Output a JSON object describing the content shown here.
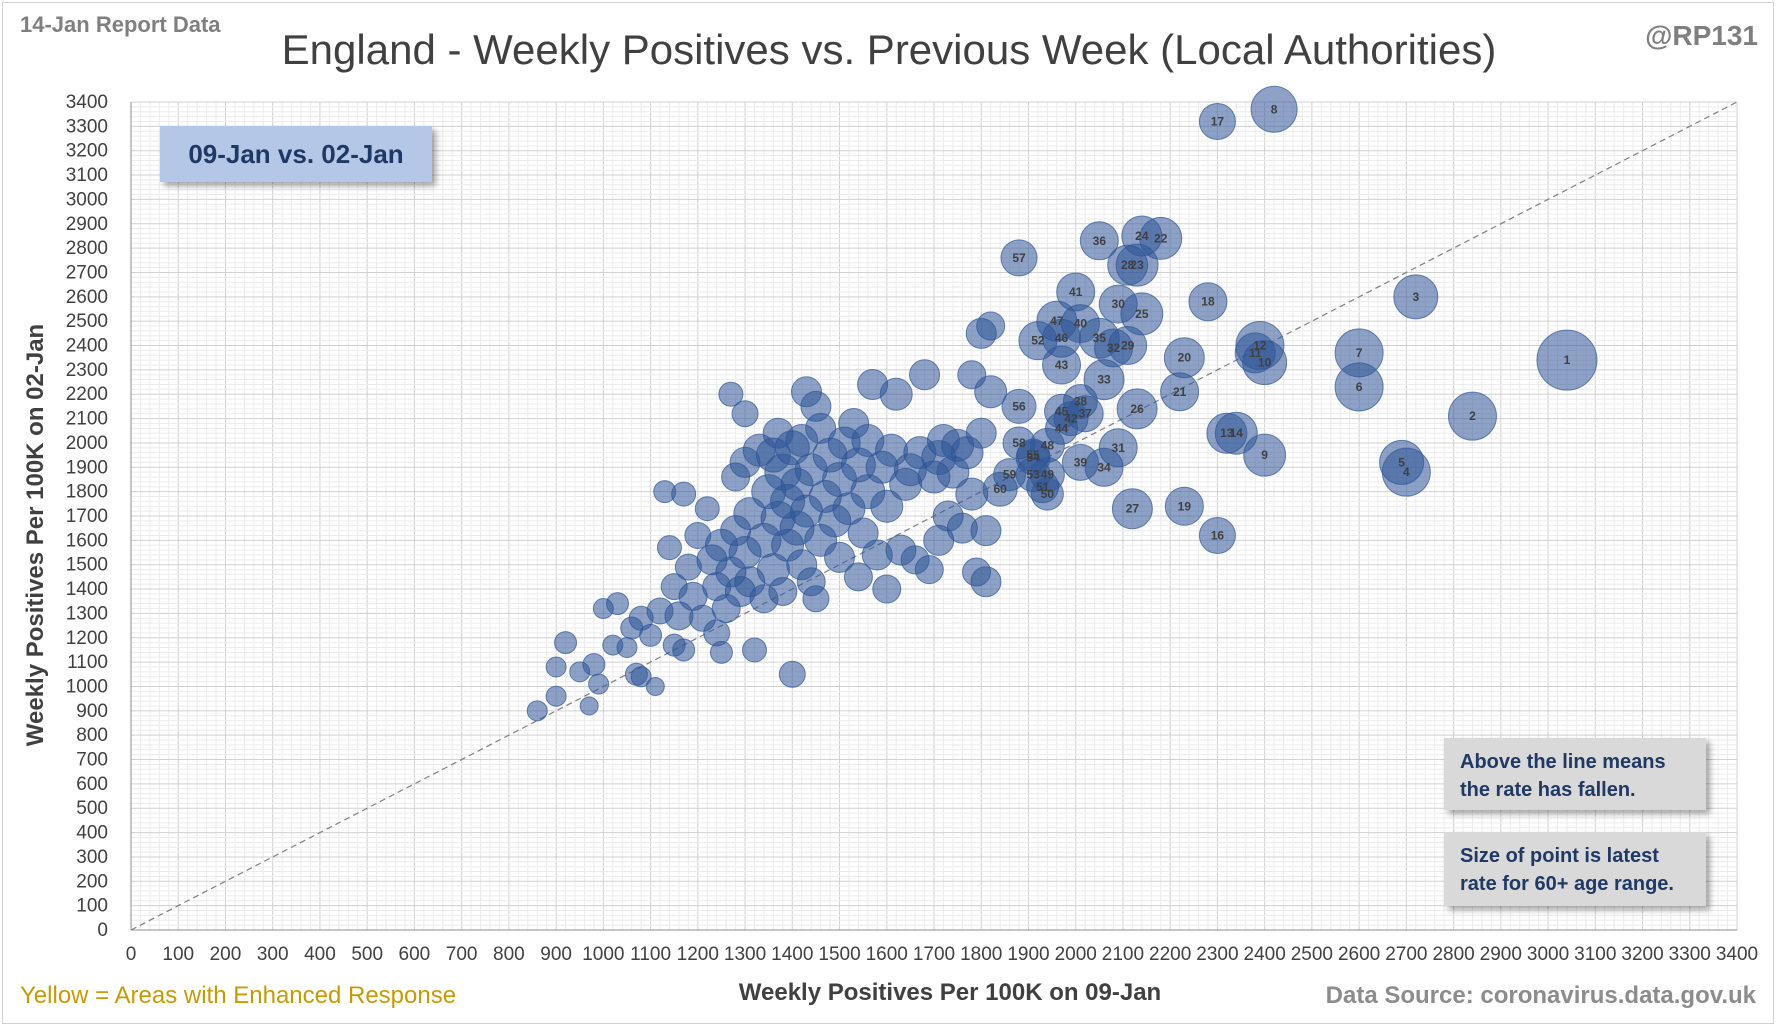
{
  "header": {
    "report_date": "14-Jan Report Data",
    "handle": "@RP131"
  },
  "footer": {
    "note": "Yellow = Areas with Enhanced  Response",
    "source": "Data Source: coronavirus.data.gov.uk"
  },
  "badge": "09-Jan vs. 02-Jan",
  "notes": {
    "line_meaning": "Above the line means the rate has fallen.",
    "size_meaning": "Size of point is latest rate for 60+ age range."
  },
  "colors": {
    "bubble": "#2f5597",
    "badge_bg": "#b4c7e7",
    "note_bg": "#d9d9d9",
    "enhanced": "#c99a00"
  },
  "chart_data": {
    "type": "scatter",
    "title": "England - Weekly Positives vs. Previous Week (Local Authorities)",
    "xlabel": "Weekly Positives Per 100K on 09-Jan",
    "ylabel": "Weekly Positives Per 100K on 02-Jan",
    "xlim": [
      0,
      3400
    ],
    "ylim": [
      0,
      3400
    ],
    "x_ticks": [
      "0",
      "100",
      "200",
      "300",
      "400",
      "500",
      "600",
      "700",
      "800",
      "900",
      "1000",
      "1100",
      "1200",
      "1300",
      "1400",
      "1500",
      "1600",
      "1700",
      "1800",
      "1900",
      "2000",
      "2100",
      "2200",
      "2300",
      "2400",
      "2500",
      "2600",
      "2700",
      "2800",
      "2900",
      "3000",
      "3100",
      "3200",
      "3300",
      "3400"
    ],
    "y_ticks": [
      "0",
      "100",
      "200",
      "300",
      "400",
      "500",
      "600",
      "700",
      "800",
      "900",
      "1000",
      "1100",
      "1200",
      "1300",
      "1400",
      "1500",
      "1600",
      "1700",
      "1800",
      "1900",
      "2000",
      "2100",
      "2200",
      "2300",
      "2400",
      "2500",
      "2600",
      "2700",
      "2800",
      "2900",
      "3000",
      "3100",
      "3200",
      "3300",
      "3400"
    ],
    "grid": true,
    "reference_line": "y = x",
    "labeled_points": [
      {
        "label": "1",
        "x": 3040,
        "y": 2340,
        "size": 3
      },
      {
        "label": "2",
        "x": 2840,
        "y": 2110,
        "size": 2.4
      },
      {
        "label": "3",
        "x": 2720,
        "y": 2600,
        "size": 2.2
      },
      {
        "label": "4",
        "x": 2700,
        "y": 1880,
        "size": 2.4
      },
      {
        "label": "5",
        "x": 2690,
        "y": 1920,
        "size": 2.2
      },
      {
        "label": "6",
        "x": 2600,
        "y": 2230,
        "size": 2.4
      },
      {
        "label": "7",
        "x": 2600,
        "y": 2370,
        "size": 2.4
      },
      {
        "label": "8",
        "x": 2420,
        "y": 3370,
        "size": 2.3
      },
      {
        "label": "9",
        "x": 2400,
        "y": 1950,
        "size": 2.1
      },
      {
        "label": "10",
        "x": 2400,
        "y": 2330,
        "size": 2.2
      },
      {
        "label": "11",
        "x": 2380,
        "y": 2370,
        "size": 2.0
      },
      {
        "label": "12",
        "x": 2390,
        "y": 2400,
        "size": 2.4
      },
      {
        "label": "13",
        "x": 2320,
        "y": 2040,
        "size": 2.0
      },
      {
        "label": "14",
        "x": 2340,
        "y": 2040,
        "size": 2.1
      },
      {
        "label": "16",
        "x": 2300,
        "y": 1620,
        "size": 1.8
      },
      {
        "label": "17",
        "x": 2300,
        "y": 3320,
        "size": 1.8
      },
      {
        "label": "18",
        "x": 2280,
        "y": 2580,
        "size": 1.9
      },
      {
        "label": "19",
        "x": 2230,
        "y": 1740,
        "size": 1.9
      },
      {
        "label": "20",
        "x": 2230,
        "y": 2350,
        "size": 2.0
      },
      {
        "label": "21",
        "x": 2220,
        "y": 2210,
        "size": 1.9
      },
      {
        "label": "22",
        "x": 2180,
        "y": 2840,
        "size": 2.1
      },
      {
        "label": "23",
        "x": 2130,
        "y": 2730,
        "size": 2.1
      },
      {
        "label": "24",
        "x": 2140,
        "y": 2850,
        "size": 2.0
      },
      {
        "label": "25",
        "x": 2140,
        "y": 2530,
        "size": 2.1
      },
      {
        "label": "26",
        "x": 2130,
        "y": 2140,
        "size": 2.0
      },
      {
        "label": "27",
        "x": 2120,
        "y": 1730,
        "size": 2.0
      },
      {
        "label": "28",
        "x": 2110,
        "y": 2730,
        "size": 2.0
      },
      {
        "label": "29",
        "x": 2110,
        "y": 2400,
        "size": 1.9
      },
      {
        "label": "30",
        "x": 2090,
        "y": 2570,
        "size": 1.9
      },
      {
        "label": "31",
        "x": 2090,
        "y": 1980,
        "size": 1.9
      },
      {
        "label": "32",
        "x": 2080,
        "y": 2390,
        "size": 1.9
      },
      {
        "label": "33",
        "x": 2060,
        "y": 2260,
        "size": 2.0
      },
      {
        "label": "34",
        "x": 2060,
        "y": 1900,
        "size": 1.9
      },
      {
        "label": "35",
        "x": 2050,
        "y": 2430,
        "size": 2.0
      },
      {
        "label": "36",
        "x": 2050,
        "y": 2830,
        "size": 1.9
      },
      {
        "label": "37",
        "x": 2020,
        "y": 2120,
        "size": 1.8
      },
      {
        "label": "38",
        "x": 2010,
        "y": 2170,
        "size": 1.7
      },
      {
        "label": "39",
        "x": 2010,
        "y": 1920,
        "size": 1.8
      },
      {
        "label": "40",
        "x": 2010,
        "y": 2490,
        "size": 1.9
      },
      {
        "label": "41",
        "x": 2000,
        "y": 2620,
        "size": 1.9
      },
      {
        "label": "42",
        "x": 1990,
        "y": 2100,
        "size": 1.7
      },
      {
        "label": "43",
        "x": 1970,
        "y": 2320,
        "size": 1.9
      },
      {
        "label": "44",
        "x": 1970,
        "y": 2060,
        "size": 1.6
      },
      {
        "label": "45",
        "x": 1970,
        "y": 2130,
        "size": 1.7
      },
      {
        "label": "46",
        "x": 1970,
        "y": 2430,
        "size": 1.9
      },
      {
        "label": "47",
        "x": 1960,
        "y": 2500,
        "size": 2.0
      },
      {
        "label": "48",
        "x": 1940,
        "y": 1990,
        "size": 1.7
      },
      {
        "label": "49",
        "x": 1940,
        "y": 1870,
        "size": 1.7
      },
      {
        "label": "50",
        "x": 1940,
        "y": 1790,
        "size": 1.6
      },
      {
        "label": "51",
        "x": 1930,
        "y": 1820,
        "size": 1.6
      },
      {
        "label": "52",
        "x": 1920,
        "y": 2420,
        "size": 1.9
      },
      {
        "label": "53",
        "x": 1910,
        "y": 1870,
        "size": 1.7
      },
      {
        "label": "54",
        "x": 1910,
        "y": 1940,
        "size": 1.7
      },
      {
        "label": "55",
        "x": 1910,
        "y": 1950,
        "size": 1.6
      },
      {
        "label": "56",
        "x": 1880,
        "y": 2150,
        "size": 1.7
      },
      {
        "label": "57",
        "x": 1880,
        "y": 2760,
        "size": 1.8
      },
      {
        "label": "58",
        "x": 1880,
        "y": 2000,
        "size": 1.6
      },
      {
        "label": "59",
        "x": 1860,
        "y": 1870,
        "size": 1.6
      },
      {
        "label": "60",
        "x": 1840,
        "y": 1810,
        "size": 1.7
      }
    ],
    "unlabeled_points": [
      [
        860,
        900,
        1
      ],
      [
        900,
        960,
        1
      ],
      [
        900,
        1080,
        1
      ],
      [
        920,
        1180,
        1.1
      ],
      [
        950,
        1060,
        1
      ],
      [
        970,
        920,
        0.9
      ],
      [
        980,
        1090,
        1.1
      ],
      [
        990,
        1010,
        1
      ],
      [
        1000,
        1320,
        1
      ],
      [
        1020,
        1170,
        1
      ],
      [
        1030,
        1340,
        1.1
      ],
      [
        1050,
        1160,
        1
      ],
      [
        1060,
        1240,
        1.1
      ],
      [
        1070,
        1050,
        1.1
      ],
      [
        1080,
        1280,
        1.2
      ],
      [
        1080,
        1040,
        1
      ],
      [
        1100,
        1210,
        1.1
      ],
      [
        1110,
        1000,
        0.9
      ],
      [
        1120,
        1310,
        1.3
      ],
      [
        1130,
        1800,
        1.1
      ],
      [
        1140,
        1570,
        1.2
      ],
      [
        1150,
        1170,
        1.1
      ],
      [
        1150,
        1410,
        1.3
      ],
      [
        1160,
        1290,
        1.4
      ],
      [
        1170,
        1150,
        1.1
      ],
      [
        1170,
        1790,
        1.2
      ],
      [
        1180,
        1490,
        1.3
      ],
      [
        1190,
        1370,
        1.4
      ],
      [
        1200,
        1620,
        1.3
      ],
      [
        1210,
        1280,
        1.3
      ],
      [
        1220,
        1730,
        1.2
      ],
      [
        1230,
        1520,
        1.5
      ],
      [
        1240,
        1410,
        1.4
      ],
      [
        1240,
        1220,
        1.3
      ],
      [
        1250,
        1580,
        1.6
      ],
      [
        1250,
        1140,
        1.1
      ],
      [
        1260,
        1320,
        1.4
      ],
      [
        1270,
        1470,
        1.5
      ],
      [
        1270,
        2200,
        1.2
      ],
      [
        1280,
        1640,
        1.5
      ],
      [
        1280,
        1860,
        1.4
      ],
      [
        1290,
        1390,
        1.5
      ],
      [
        1300,
        1550,
        1.6
      ],
      [
        1300,
        1920,
        1.5
      ],
      [
        1300,
        2120,
        1.3
      ],
      [
        1310,
        1710,
        1.6
      ],
      [
        1310,
        1430,
        1.5
      ],
      [
        1320,
        1150,
        1.2
      ],
      [
        1330,
        1970,
        1.6
      ],
      [
        1340,
        1600,
        1.7
      ],
      [
        1340,
        1360,
        1.4
      ],
      [
        1350,
        1800,
        1.7
      ],
      [
        1360,
        1950,
        1.7
      ],
      [
        1360,
        1480,
        1.6
      ],
      [
        1370,
        2040,
        1.5
      ],
      [
        1370,
        1690,
        1.7
      ],
      [
        1380,
        1880,
        1.8
      ],
      [
        1380,
        1390,
        1.4
      ],
      [
        1390,
        1580,
        1.6
      ],
      [
        1390,
        1760,
        1.7
      ],
      [
        1400,
        1050,
        1.3
      ],
      [
        1400,
        1980,
        1.7
      ],
      [
        1410,
        1650,
        1.7
      ],
      [
        1410,
        1830,
        1.6
      ],
      [
        1420,
        1500,
        1.5
      ],
      [
        1420,
        2010,
        1.6
      ],
      [
        1430,
        1720,
        1.6
      ],
      [
        1430,
        2210,
        1.5
      ],
      [
        1440,
        1430,
        1.4
      ],
      [
        1440,
        1890,
        1.6
      ],
      [
        1450,
        1360,
        1.3
      ],
      [
        1450,
        2150,
        1.5
      ],
      [
        1460,
        1600,
        1.6
      ],
      [
        1460,
        2060,
        1.5
      ],
      [
        1470,
        1780,
        1.6
      ],
      [
        1480,
        1950,
        1.7
      ],
      [
        1490,
        1680,
        1.6
      ],
      [
        1500,
        1530,
        1.5
      ],
      [
        1500,
        1850,
        1.7
      ],
      [
        1510,
        2000,
        1.6
      ],
      [
        1520,
        1730,
        1.6
      ],
      [
        1530,
        2080,
        1.5
      ],
      [
        1540,
        1450,
        1.4
      ],
      [
        1540,
        1910,
        1.7
      ],
      [
        1550,
        1630,
        1.5
      ],
      [
        1560,
        1800,
        1.7
      ],
      [
        1560,
        2010,
        1.6
      ],
      [
        1570,
        2240,
        1.5
      ],
      [
        1580,
        1540,
        1.5
      ],
      [
        1590,
        1900,
        1.6
      ],
      [
        1600,
        1400,
        1.4
      ],
      [
        1600,
        1740,
        1.6
      ],
      [
        1610,
        1970,
        1.6
      ],
      [
        1620,
        2200,
        1.6
      ],
      [
        1630,
        1560,
        1.5
      ],
      [
        1640,
        1830,
        1.6
      ],
      [
        1650,
        1890,
        1.6
      ],
      [
        1660,
        1520,
        1.4
      ],
      [
        1670,
        1960,
        1.6
      ],
      [
        1680,
        2280,
        1.5
      ],
      [
        1690,
        1480,
        1.4
      ],
      [
        1700,
        1860,
        1.6
      ],
      [
        1710,
        1600,
        1.5
      ],
      [
        1710,
        1940,
        1.7
      ],
      [
        1720,
        2010,
        1.6
      ],
      [
        1730,
        1700,
        1.5
      ],
      [
        1740,
        1880,
        1.6
      ],
      [
        1750,
        1990,
        1.6
      ],
      [
        1760,
        1650,
        1.5
      ],
      [
        1770,
        1960,
        1.6
      ],
      [
        1780,
        2280,
        1.4
      ],
      [
        1780,
        1790,
        1.6
      ],
      [
        1790,
        1470,
        1.4
      ],
      [
        1800,
        2040,
        1.5
      ],
      [
        1800,
        2450,
        1.5
      ],
      [
        1810,
        1430,
        1.5
      ],
      [
        1810,
        1640,
        1.5
      ],
      [
        1820,
        2210,
        1.6
      ],
      [
        1820,
        2480,
        1.4
      ]
    ]
  }
}
